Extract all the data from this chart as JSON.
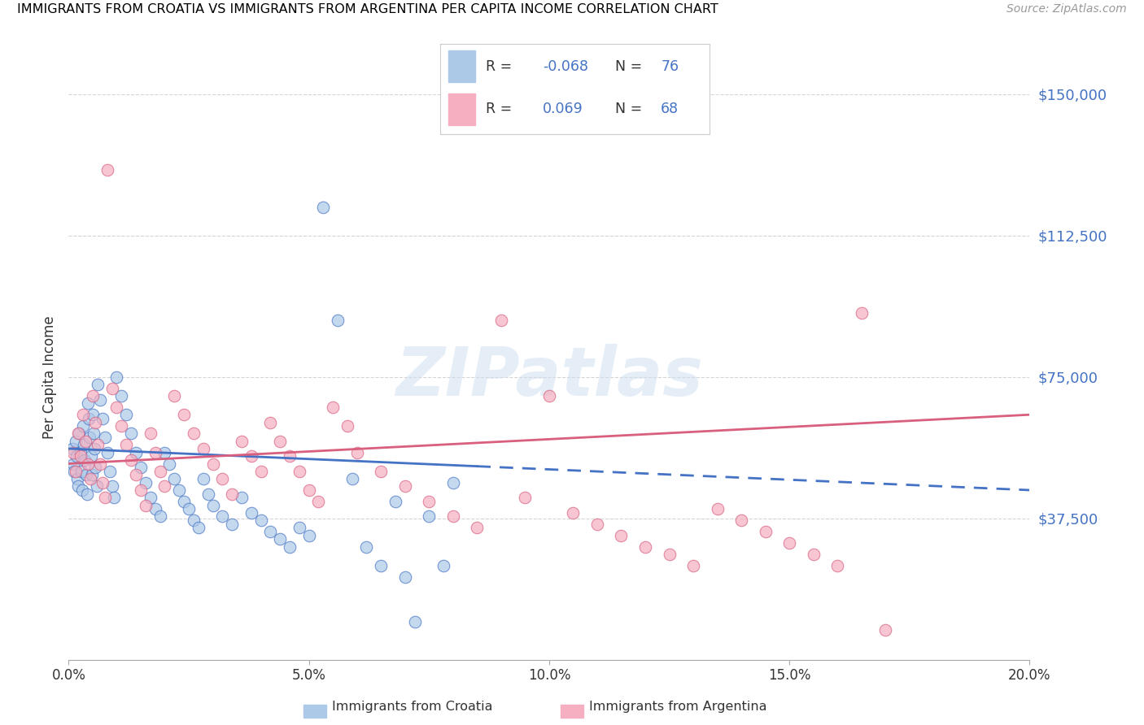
{
  "title": "IMMIGRANTS FROM CROATIA VS IMMIGRANTS FROM ARGENTINA PER CAPITA INCOME CORRELATION CHART",
  "source": "Source: ZipAtlas.com",
  "ylabel": "Per Capita Income",
  "yticks": [
    0,
    37500,
    75000,
    112500,
    150000
  ],
  "ytick_labels": [
    "",
    "$37,500",
    "$75,000",
    "$112,500",
    "$150,000"
  ],
  "xtick_positions": [
    0,
    5,
    10,
    15,
    20
  ],
  "xtick_labels": [
    "0.0%",
    "5.0%",
    "10.0%",
    "15.0%",
    "20.0%"
  ],
  "xlim": [
    0.0,
    20.0
  ],
  "ylim": [
    0,
    150000
  ],
  "r_croatia": "-0.068",
  "n_croatia": "76",
  "r_argentina": "0.069",
  "n_argentina": "68",
  "color_croatia_fill": "#adc9e8",
  "color_argentina_fill": "#f5afc0",
  "color_croatia_line": "#4472c4",
  "color_argentina_line": "#d95f7f",
  "color_blue_text": "#4472c4",
  "color_grid": "#d0d0d0",
  "watermark": "ZIPatlas",
  "watermark_color": "#d0e0f0",
  "legend_label1": "Immigrants from Croatia",
  "legend_label2": "Immigrants from Argentina",
  "scatter_size": 110,
  "line_width": 2.0,
  "croatia_x": [
    0.08,
    0.1,
    0.12,
    0.14,
    0.16,
    0.18,
    0.2,
    0.22,
    0.24,
    0.26,
    0.28,
    0.3,
    0.32,
    0.34,
    0.36,
    0.38,
    0.4,
    0.42,
    0.44,
    0.46,
    0.48,
    0.5,
    0.52,
    0.54,
    0.56,
    0.58,
    0.6,
    0.65,
    0.7,
    0.75,
    0.8,
    0.85,
    0.9,
    0.95,
    1.0,
    1.1,
    1.2,
    1.3,
    1.4,
    1.5,
    1.6,
    1.7,
    1.8,
    1.9,
    2.0,
    2.1,
    2.2,
    2.3,
    2.4,
    2.5,
    2.6,
    2.7,
    2.8,
    2.9,
    3.0,
    3.2,
    3.4,
    3.6,
    3.8,
    4.0,
    4.2,
    4.4,
    4.6,
    4.8,
    5.0,
    5.3,
    5.6,
    5.9,
    6.2,
    6.5,
    6.8,
    7.0,
    7.2,
    7.5,
    7.8,
    8.0
  ],
  "croatia_y": [
    56000,
    52000,
    50000,
    58000,
    54000,
    48000,
    46000,
    60000,
    55000,
    50000,
    45000,
    62000,
    57000,
    53000,
    49000,
    44000,
    68000,
    64000,
    59000,
    54000,
    49000,
    65000,
    60000,
    56000,
    51000,
    46000,
    73000,
    69000,
    64000,
    59000,
    55000,
    50000,
    46000,
    43000,
    75000,
    70000,
    65000,
    60000,
    55000,
    51000,
    47000,
    43000,
    40000,
    38000,
    55000,
    52000,
    48000,
    45000,
    42000,
    40000,
    37000,
    35000,
    48000,
    44000,
    41000,
    38000,
    36000,
    43000,
    39000,
    37000,
    34000,
    32000,
    30000,
    35000,
    33000,
    120000,
    90000,
    48000,
    30000,
    25000,
    42000,
    22000,
    10000,
    38000,
    25000,
    47000
  ],
  "argentina_x": [
    0.1,
    0.15,
    0.2,
    0.25,
    0.3,
    0.35,
    0.4,
    0.45,
    0.5,
    0.55,
    0.6,
    0.65,
    0.7,
    0.75,
    0.8,
    0.9,
    1.0,
    1.1,
    1.2,
    1.3,
    1.4,
    1.5,
    1.6,
    1.7,
    1.8,
    1.9,
    2.0,
    2.2,
    2.4,
    2.6,
    2.8,
    3.0,
    3.2,
    3.4,
    3.6,
    3.8,
    4.0,
    4.2,
    4.4,
    4.6,
    4.8,
    5.0,
    5.2,
    5.5,
    5.8,
    6.0,
    6.5,
    7.0,
    7.5,
    8.0,
    8.5,
    9.0,
    9.5,
    10.0,
    10.5,
    11.0,
    11.5,
    12.0,
    12.5,
    13.0,
    13.5,
    14.0,
    14.5,
    15.0,
    15.5,
    16.0,
    16.5,
    17.0
  ],
  "argentina_y": [
    55000,
    50000,
    60000,
    54000,
    65000,
    58000,
    52000,
    48000,
    70000,
    63000,
    57000,
    52000,
    47000,
    43000,
    130000,
    72000,
    67000,
    62000,
    57000,
    53000,
    49000,
    45000,
    41000,
    60000,
    55000,
    50000,
    46000,
    70000,
    65000,
    60000,
    56000,
    52000,
    48000,
    44000,
    58000,
    54000,
    50000,
    63000,
    58000,
    54000,
    50000,
    45000,
    42000,
    67000,
    62000,
    55000,
    50000,
    46000,
    42000,
    38000,
    35000,
    90000,
    43000,
    70000,
    39000,
    36000,
    33000,
    30000,
    28000,
    25000,
    40000,
    37000,
    34000,
    31000,
    28000,
    25000,
    92000,
    8000
  ]
}
